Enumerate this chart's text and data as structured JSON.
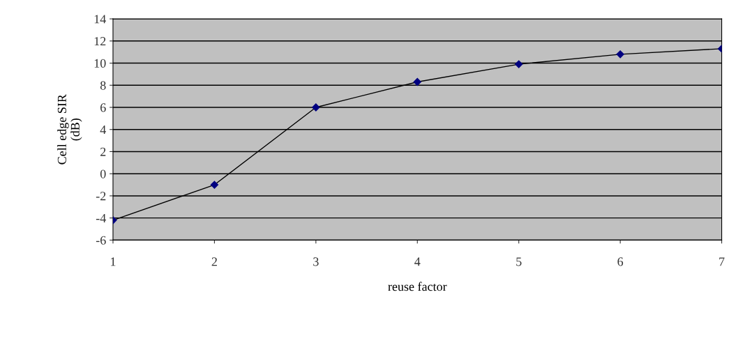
{
  "chart_data": {
    "type": "line",
    "xlabel": "reuse factor",
    "ylabel": "Cell edge SIR\n(dB)",
    "x": [
      1,
      2,
      3,
      4,
      5,
      6,
      7
    ],
    "xlim": [
      1,
      7
    ],
    "xticks": [
      1,
      2,
      3,
      4,
      5,
      6,
      7
    ],
    "ylim": [
      -6,
      14
    ],
    "yticks": [
      -6,
      -4,
      -2,
      0,
      2,
      4,
      6,
      8,
      10,
      12,
      14
    ],
    "series": [
      {
        "color": "#000080",
        "values": [
          -4.2,
          -1.0,
          6.0,
          8.3,
          9.9,
          10.8,
          11.3
        ]
      }
    ],
    "marker": "diamond",
    "line_style": "solid",
    "grid": "y",
    "legend": false
  }
}
